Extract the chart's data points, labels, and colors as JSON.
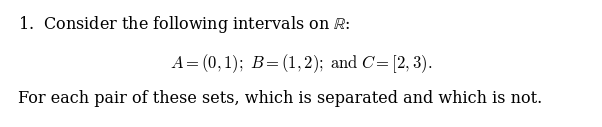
{
  "background_color": "#ffffff",
  "text_color": "#000000",
  "fig_width": 6.02,
  "fig_height": 1.27,
  "dpi": 100,
  "line1": "1.\\u2003Consider the following intervals on $\\mathbb{R}$:",
  "line2": "$A = (0, 1);\\;\\; B = (1, 2);\\;\\;$ and $C = [2, 3).$",
  "line3": "For each pair of these sets, which is separated and which is not.",
  "font_size": 11.5,
  "math_font_size": 11.5
}
